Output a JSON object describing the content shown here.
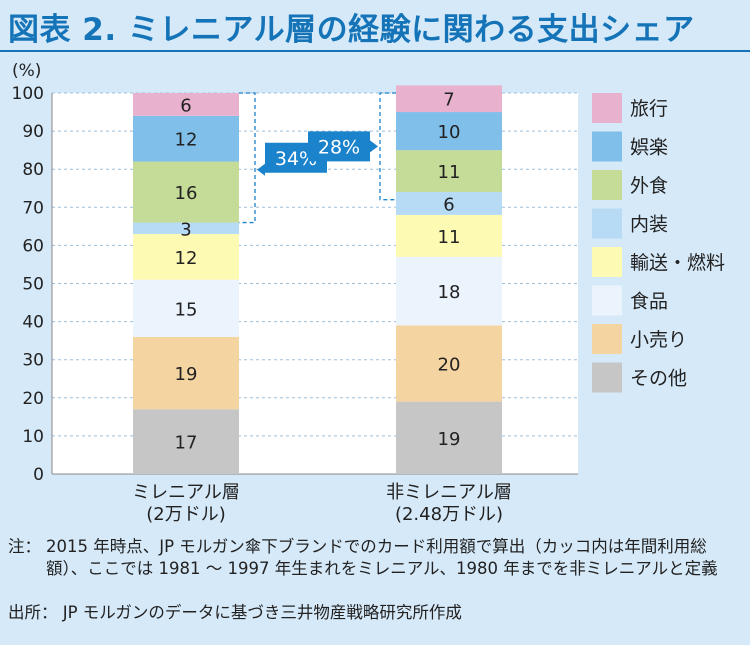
{
  "title": "図表 2. ミレニアル層の経験に関わる支出シェア",
  "chart_data": {
    "type": "bar",
    "stacked": true,
    "unit_label": "(%)",
    "ylim": [
      0,
      100
    ],
    "yticks": [
      0,
      10,
      20,
      30,
      40,
      50,
      60,
      70,
      80,
      90,
      100
    ],
    "grid": true,
    "legend_position": "right",
    "categories": [
      {
        "line1": "ミレニアル層",
        "line2": "(2万ドル)"
      },
      {
        "line1": "非ミレニアル層",
        "line2": "(2.48万ドル)"
      }
    ],
    "series": [
      {
        "name": "その他",
        "color": "#c6c6c6",
        "values": [
          17,
          19
        ]
      },
      {
        "name": "小売り",
        "color": "#f4d4a1",
        "values": [
          19,
          20
        ]
      },
      {
        "name": "食品",
        "color": "#ebf3fc",
        "values": [
          15,
          18
        ]
      },
      {
        "name": "輸送・燃料",
        "color": "#fdfab4",
        "values": [
          12,
          11
        ]
      },
      {
        "name": "内装",
        "color": "#b7dbf5",
        "values": [
          3,
          6
        ]
      },
      {
        "name": "外食",
        "color": "#c4dc98",
        "values": [
          16,
          11
        ]
      },
      {
        "name": "娯楽",
        "color": "#7fbfe9",
        "values": [
          12,
          10
        ]
      },
      {
        "name": "旅行",
        "color": "#e8b2ce",
        "values": [
          6,
          7
        ]
      }
    ],
    "annotations": [
      {
        "category_index": 0,
        "text": "34%",
        "from": 66,
        "to": 100,
        "side": "right"
      },
      {
        "category_index": 1,
        "text": "28%",
        "from": 72,
        "to": 100,
        "side": "left"
      }
    ]
  },
  "notes": {
    "note_label": "注：",
    "note_text": "2015 年時点、JP モルガン傘下ブランドでのカード利用額で算出（カッコ内は年間利用総額）、ここでは 1981 ～ 1997 年生まれをミレニアル、1980 年までを非ミレニアルと定義",
    "source_label": "出所：",
    "source_text": "JP モルガンのデータに基づき三井物産戦略研究所作成"
  }
}
